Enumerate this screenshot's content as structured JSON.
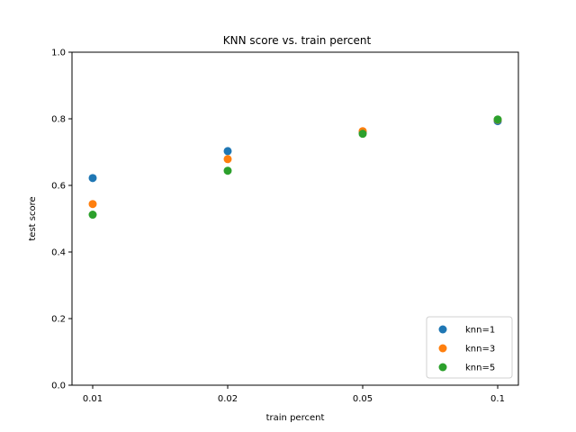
{
  "chart_data": {
    "type": "scatter",
    "title": "KNN score vs. train percent",
    "xlabel": "train percent",
    "ylabel": "test score",
    "categories": [
      "0.01",
      "0.02",
      "0.05",
      "0.1"
    ],
    "ylim": [
      0.0,
      1.0
    ],
    "yticks": [
      "0.0",
      "0.2",
      "0.4",
      "0.6",
      "0.8",
      "1.0"
    ],
    "grid": false,
    "legend_position": "bottom-right",
    "series": [
      {
        "name": "knn=1",
        "color": "#1f77b4",
        "values": [
          0.622,
          0.703,
          0.76,
          0.793
        ]
      },
      {
        "name": "knn=3",
        "color": "#ff7f0e",
        "values": [
          0.544,
          0.679,
          0.763,
          0.797
        ]
      },
      {
        "name": "knn=5",
        "color": "#2ca02c",
        "values": [
          0.512,
          0.644,
          0.755,
          0.798
        ]
      }
    ]
  }
}
